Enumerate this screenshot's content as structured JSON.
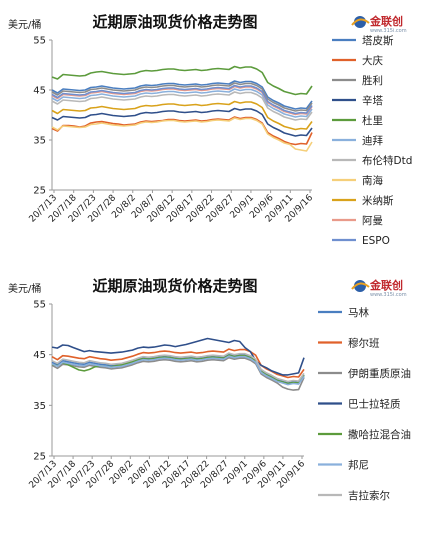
{
  "logo": {
    "brand": "金联创",
    "url": "www.315i.com"
  },
  "chart_data": [
    {
      "type": "line",
      "title": "近期原油现货价格走势图",
      "ylabel": "美元/桶",
      "ylim": [
        25,
        55
      ],
      "yticks": [
        25,
        35,
        45,
        55
      ],
      "x_tick_labels": [
        "20/7/13",
        "20/7/18",
        "20/7/23",
        "20/7/28",
        "20/8/2",
        "20/8/7",
        "20/8/12",
        "20/8/17",
        "20/8/22",
        "20/8/27",
        "20/9/1",
        "20/9/6",
        "20/9/11",
        "20/9/16"
      ],
      "x_count": 48,
      "grid": false,
      "legend_position": "right",
      "series": [
        {
          "name": "塔皮斯",
          "color": "#4a7ec0",
          "values": [
            45.0,
            44.4,
            45.2,
            45.1,
            45.0,
            44.9,
            45.0,
            45.5,
            45.6,
            45.8,
            45.6,
            45.4,
            45.3,
            45.2,
            45.3,
            45.4,
            45.8,
            46.0,
            45.9,
            46.0,
            46.2,
            46.3,
            46.3,
            46.1,
            46.0,
            46.1,
            46.2,
            46.0,
            46.1,
            46.3,
            46.4,
            46.3,
            46.2,
            46.8,
            46.5,
            46.7,
            46.7,
            46.3,
            45.6,
            43.6,
            42.9,
            42.4,
            41.8,
            41.5,
            41.2,
            41.4,
            41.3,
            42.8
          ]
        },
        {
          "name": "大庆",
          "color": "#e0612a",
          "values": [
            37.3,
            36.8,
            37.9,
            37.9,
            37.8,
            37.6,
            37.8,
            38.4,
            38.6,
            38.7,
            38.5,
            38.3,
            38.2,
            38.0,
            38.1,
            38.2,
            38.6,
            38.8,
            38.7,
            38.8,
            38.9,
            39.1,
            39.1,
            38.9,
            38.8,
            38.9,
            39.0,
            38.8,
            38.9,
            39.1,
            39.2,
            39.1,
            39.0,
            39.6,
            39.3,
            39.5,
            39.5,
            39.1,
            38.4,
            36.5,
            35.8,
            35.3,
            34.7,
            34.3,
            34.1,
            34.3,
            34.2,
            36.5
          ]
        },
        {
          "name": "胜利",
          "color": "#8c8c8c",
          "values": [
            44.6,
            44.0,
            44.8,
            44.7,
            44.6,
            44.5,
            44.6,
            45.1,
            45.2,
            45.4,
            45.2,
            45.0,
            44.9,
            44.8,
            44.9,
            45.0,
            45.4,
            45.6,
            45.5,
            45.6,
            45.8,
            45.9,
            45.9,
            45.7,
            45.6,
            45.7,
            45.8,
            45.6,
            45.7,
            45.9,
            46.0,
            45.9,
            45.8,
            46.4,
            46.1,
            46.3,
            46.3,
            45.9,
            45.2,
            43.2,
            42.5,
            42.0,
            41.4,
            41.1,
            40.8,
            41.0,
            40.9,
            42.4
          ]
        },
        {
          "name": "辛塔",
          "color": "#2f4f8a",
          "values": [
            39.5,
            39.0,
            39.7,
            39.6,
            39.5,
            39.4,
            39.5,
            40.0,
            40.1,
            40.3,
            40.1,
            39.9,
            39.8,
            39.7,
            39.8,
            39.9,
            40.3,
            40.5,
            40.4,
            40.5,
            40.7,
            40.8,
            40.8,
            40.6,
            40.5,
            40.6,
            40.7,
            40.5,
            40.6,
            40.8,
            40.9,
            40.8,
            40.7,
            41.3,
            41.0,
            41.2,
            41.2,
            40.8,
            40.1,
            38.2,
            37.5,
            37.0,
            36.4,
            36.1,
            35.8,
            36.0,
            35.9,
            37.4
          ]
        },
        {
          "name": "杜里",
          "color": "#5c9b3c",
          "values": [
            47.6,
            47.2,
            48.1,
            48.0,
            47.9,
            47.8,
            47.9,
            48.4,
            48.6,
            48.7,
            48.5,
            48.3,
            48.2,
            48.1,
            48.2,
            48.3,
            48.7,
            48.9,
            48.8,
            48.9,
            49.1,
            49.2,
            49.2,
            49.0,
            48.9,
            49.0,
            49.1,
            48.9,
            49.0,
            49.2,
            49.3,
            49.2,
            49.1,
            49.7,
            49.4,
            49.6,
            49.6,
            49.2,
            48.5,
            46.5,
            45.8,
            45.3,
            44.7,
            44.4,
            44.1,
            44.3,
            44.2,
            45.8
          ]
        },
        {
          "name": "迪拜",
          "color": "#8ab0dc",
          "values": [
            43.4,
            42.8,
            43.6,
            43.5,
            43.4,
            43.3,
            43.4,
            43.9,
            44.0,
            44.2,
            44.0,
            43.8,
            43.7,
            43.6,
            43.7,
            43.8,
            44.2,
            44.4,
            44.3,
            44.4,
            44.6,
            44.7,
            44.7,
            44.5,
            44.4,
            44.5,
            44.6,
            44.4,
            44.5,
            44.7,
            44.8,
            44.7,
            44.6,
            45.2,
            44.9,
            45.1,
            45.1,
            44.7,
            44.0,
            42.0,
            41.3,
            40.8,
            40.2,
            39.9,
            39.6,
            39.8,
            39.7,
            41.2
          ]
        },
        {
          "name": "布伦特Dtd",
          "color": "#b8b8b8",
          "values": [
            42.8,
            42.2,
            43.0,
            42.9,
            42.8,
            42.7,
            42.8,
            43.3,
            43.4,
            43.6,
            43.4,
            43.2,
            43.1,
            43.0,
            43.1,
            43.2,
            43.6,
            43.8,
            43.7,
            43.8,
            44.0,
            44.1,
            44.1,
            43.9,
            43.8,
            43.9,
            44.0,
            43.8,
            43.9,
            44.1,
            44.2,
            44.1,
            44.0,
            44.6,
            44.3,
            44.5,
            44.5,
            44.1,
            43.4,
            41.4,
            40.7,
            40.2,
            39.6,
            39.3,
            39.0,
            39.2,
            39.1,
            40.6
          ]
        },
        {
          "name": "南海",
          "color": "#f5cf7a",
          "values": [
            37.6,
            37.0,
            37.8,
            37.7,
            37.6,
            37.5,
            37.6,
            38.1,
            38.2,
            38.4,
            38.2,
            38.0,
            37.9,
            37.8,
            37.9,
            38.0,
            38.4,
            38.6,
            38.5,
            38.6,
            38.8,
            38.9,
            38.9,
            38.7,
            38.6,
            38.7,
            38.8,
            38.6,
            38.7,
            38.9,
            39.0,
            38.9,
            38.8,
            39.4,
            39.1,
            39.3,
            39.3,
            38.9,
            38.2,
            36.2,
            35.5,
            35.0,
            34.4,
            34.1,
            33.2,
            33.0,
            32.8,
            34.6
          ]
        },
        {
          "name": "米纳斯",
          "color": "#d9a21b",
          "values": [
            40.9,
            40.3,
            41.1,
            41.0,
            40.9,
            40.8,
            40.9,
            41.4,
            41.5,
            41.7,
            41.5,
            41.3,
            41.2,
            41.1,
            41.2,
            41.3,
            41.7,
            41.9,
            41.8,
            41.9,
            42.1,
            42.2,
            42.2,
            42.0,
            41.9,
            42.0,
            42.1,
            41.9,
            42.0,
            42.2,
            42.3,
            42.2,
            42.1,
            42.7,
            42.4,
            42.6,
            42.6,
            42.2,
            41.5,
            39.5,
            38.8,
            38.3,
            37.7,
            37.4,
            37.1,
            37.3,
            37.2,
            38.7
          ]
        },
        {
          "name": "阿曼",
          "color": "#e99a8a",
          "values": [
            43.9,
            43.3,
            44.1,
            44.0,
            43.9,
            43.8,
            43.9,
            44.4,
            44.5,
            44.7,
            44.5,
            44.3,
            44.2,
            44.1,
            44.2,
            44.3,
            44.7,
            44.9,
            44.8,
            44.9,
            45.1,
            45.2,
            45.2,
            45.0,
            44.9,
            45.0,
            45.1,
            44.9,
            45.0,
            45.2,
            45.3,
            45.2,
            45.1,
            45.7,
            45.4,
            45.6,
            45.6,
            45.2,
            44.5,
            42.5,
            41.8,
            41.3,
            40.7,
            40.4,
            40.1,
            40.3,
            40.2,
            41.7
          ]
        },
        {
          "name": "ESPO",
          "color": "#6f8fcf",
          "values": [
            44.1,
            43.5,
            44.3,
            44.2,
            44.1,
            44.0,
            44.1,
            44.6,
            44.7,
            44.9,
            44.7,
            44.5,
            44.4,
            44.3,
            44.4,
            44.5,
            44.9,
            45.1,
            45.0,
            45.1,
            45.3,
            45.4,
            45.4,
            45.2,
            45.1,
            45.2,
            45.3,
            45.1,
            45.2,
            45.4,
            45.5,
            45.4,
            45.3,
            45.9,
            45.6,
            45.8,
            45.8,
            45.4,
            44.7,
            42.7,
            42.0,
            41.5,
            40.9,
            40.6,
            40.3,
            40.5,
            40.4,
            41.9
          ]
        }
      ]
    },
    {
      "type": "line",
      "title": "近期原油现货价格走势图",
      "ylabel": "美元/桶",
      "ylim": [
        25,
        55
      ],
      "yticks": [
        25,
        35,
        45,
        55
      ],
      "x_tick_labels": [
        "20/7/13",
        "20/7/18",
        "20/7/23",
        "20/7/28",
        "20/8/2",
        "20/8/7",
        "20/8/12",
        "20/8/17",
        "20/8/22",
        "20/8/27",
        "20/9/1",
        "20/9/6",
        "20/9/11",
        "20/9/16"
      ],
      "x_count": 48,
      "grid": false,
      "legend_position": "right",
      "series": [
        {
          "name": "马林",
          "color": "#4a7ec0",
          "values": [
            43.5,
            43.0,
            43.8,
            43.6,
            43.4,
            43.2,
            43.1,
            43.5,
            43.3,
            43.1,
            43.0,
            42.8,
            42.9,
            43.0,
            43.3,
            43.6,
            44.0,
            44.3,
            44.2,
            44.3,
            44.5,
            44.6,
            44.5,
            44.3,
            44.2,
            44.3,
            44.4,
            44.2,
            44.3,
            44.5,
            44.6,
            44.5,
            44.4,
            45.0,
            44.7,
            44.9,
            44.9,
            44.5,
            43.8,
            41.8,
            41.1,
            40.6,
            40.0,
            39.7,
            39.4,
            39.6,
            39.5,
            41.0
          ]
        },
        {
          "name": "穆尔班",
          "color": "#e0612a",
          "values": [
            44.6,
            44.0,
            44.8,
            44.7,
            44.5,
            44.3,
            44.2,
            44.6,
            44.4,
            44.2,
            44.1,
            43.9,
            44.0,
            44.1,
            44.4,
            44.7,
            45.1,
            45.4,
            45.3,
            45.4,
            45.6,
            45.7,
            45.6,
            45.4,
            45.3,
            45.4,
            45.5,
            45.3,
            45.4,
            45.6,
            45.7,
            45.6,
            45.5,
            46.1,
            45.8,
            46.0,
            46.0,
            45.6,
            44.9,
            42.9,
            42.2,
            41.7,
            41.1,
            40.8,
            40.5,
            40.7,
            40.6,
            42.1
          ]
        },
        {
          "name": "伊朗重质原油",
          "color": "#8c8c8c",
          "values": [
            42.9,
            42.3,
            43.1,
            43.0,
            42.8,
            42.6,
            42.5,
            42.9,
            42.7,
            42.5,
            42.4,
            42.2,
            42.3,
            42.4,
            42.7,
            43.0,
            43.4,
            43.7,
            43.6,
            43.7,
            43.9,
            44.0,
            43.9,
            43.7,
            43.6,
            43.7,
            43.8,
            43.6,
            43.7,
            43.9,
            44.0,
            43.9,
            43.8,
            44.4,
            44.1,
            44.3,
            44.3,
            43.9,
            43.2,
            41.2,
            40.5,
            40.0,
            39.4,
            38.6,
            38.2,
            38.0,
            38.1,
            40.5
          ]
        },
        {
          "name": "巴士拉轻质",
          "color": "#2f4f8a",
          "values": [
            46.5,
            46.3,
            46.9,
            46.8,
            46.4,
            46.0,
            45.6,
            45.8,
            45.6,
            45.5,
            45.4,
            45.3,
            45.4,
            45.5,
            45.7,
            45.9,
            46.3,
            46.5,
            46.4,
            46.5,
            46.7,
            46.9,
            46.8,
            46.6,
            46.8,
            47.0,
            47.3,
            47.6,
            47.9,
            48.2,
            48.0,
            47.8,
            47.6,
            47.4,
            47.8,
            47.6,
            46.4,
            45.6,
            43.8,
            42.9,
            42.4,
            41.8,
            41.4,
            41.0,
            41.0,
            41.2,
            41.4,
            44.4
          ]
        },
        {
          "name": "撒哈拉混合油",
          "color": "#5c9b3c",
          "values": [
            43.1,
            42.8,
            43.4,
            43.0,
            42.5,
            42.0,
            41.8,
            42.1,
            42.6,
            42.8,
            42.7,
            42.6,
            42.8,
            43.0,
            43.3,
            43.6,
            43.9,
            44.2,
            44.1,
            44.2,
            44.4,
            44.5,
            44.4,
            44.2,
            44.1,
            44.2,
            44.3,
            44.1,
            44.2,
            44.4,
            44.5,
            44.4,
            44.3,
            44.9,
            44.6,
            44.8,
            44.8,
            44.4,
            43.7,
            41.7,
            41.0,
            40.5,
            39.9,
            39.6,
            39.3,
            39.5,
            39.4,
            40.9
          ]
        },
        {
          "name": "邦尼",
          "color": "#8ab0dc",
          "values": [
            43.2,
            42.7,
            43.5,
            43.3,
            43.1,
            42.9,
            42.8,
            43.2,
            43.0,
            42.8,
            42.7,
            42.5,
            42.6,
            42.7,
            43.0,
            43.3,
            43.7,
            44.0,
            43.9,
            44.0,
            44.2,
            44.3,
            44.2,
            44.0,
            43.9,
            44.0,
            44.1,
            43.9,
            44.0,
            44.2,
            44.3,
            44.2,
            44.1,
            44.7,
            44.4,
            44.6,
            44.6,
            44.2,
            43.5,
            41.5,
            40.8,
            40.3,
            39.7,
            39.4,
            39.1,
            39.3,
            39.2,
            40.7
          ]
        },
        {
          "name": "吉拉索尔",
          "color": "#b8b8b8",
          "values": [
            43.8,
            43.3,
            44.1,
            43.9,
            43.7,
            43.5,
            43.4,
            43.8,
            43.6,
            43.4,
            43.3,
            43.1,
            43.2,
            43.3,
            43.6,
            43.9,
            44.3,
            44.6,
            44.5,
            44.6,
            44.8,
            44.9,
            44.8,
            44.6,
            44.5,
            44.6,
            44.7,
            44.5,
            44.6,
            44.8,
            44.9,
            44.8,
            44.7,
            45.3,
            45.0,
            45.2,
            45.2,
            44.8,
            44.1,
            42.1,
            41.4,
            40.9,
            40.3,
            40.0,
            39.7,
            39.9,
            39.8,
            41.3
          ]
        }
      ]
    }
  ]
}
